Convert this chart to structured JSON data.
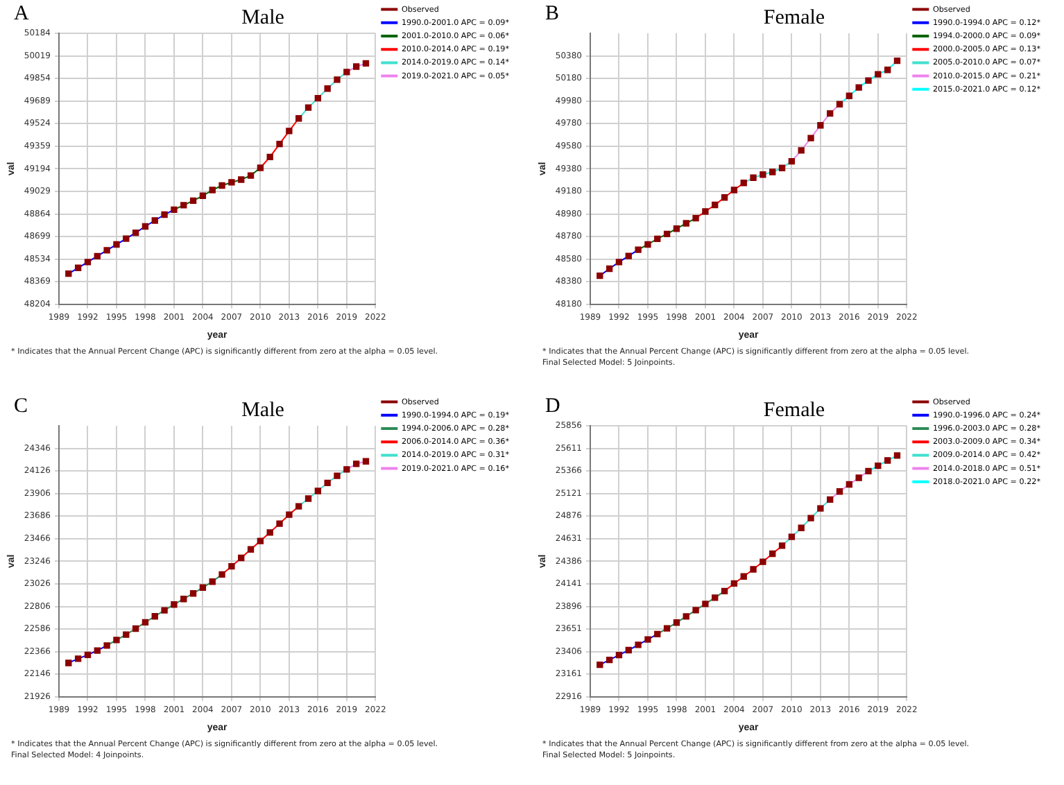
{
  "chart_data": [
    {
      "type": "line",
      "title": "Male",
      "xlabel": "year",
      "ylabel": "val",
      "xlim": [
        1989,
        2022
      ],
      "xticks": [
        1989,
        1992,
        1995,
        1998,
        2001,
        2004,
        2007,
        2010,
        2013,
        2016,
        2019,
        2022
      ],
      "ylim": [
        48204,
        50184
      ],
      "yticks": [
        48204,
        48369,
        48534,
        48699,
        48864,
        49029,
        49194,
        49359,
        49524,
        49689,
        49854,
        50019,
        50184
      ],
      "grid": true,
      "legend": "right",
      "annotations": [
        "A",
        "* Indicates that the Annual Percent Change (APC) is significantly different from zero at the alpha = 0.05 level."
      ],
      "series": [
        {
          "name": "Observed",
          "type": "scatter",
          "marker": "square",
          "color": "#8b0000",
          "x": [
            1990,
            1991,
            1992,
            1993,
            1994,
            1995,
            1996,
            1997,
            1998,
            1999,
            2000,
            2001,
            2002,
            2003,
            2004,
            2005,
            2006,
            2007,
            2008,
            2009,
            2010,
            2011,
            2012,
            2013,
            2014,
            2015,
            2016,
            2017,
            2018,
            2019,
            2020,
            2021
          ],
          "values": [
            48428,
            48470,
            48513,
            48556,
            48599,
            48641,
            48684,
            48727,
            48773,
            48816,
            48859,
            48895,
            48928,
            48961,
            48997,
            49039,
            49072,
            49095,
            49115,
            49145,
            49201,
            49280,
            49375,
            49470,
            49562,
            49641,
            49710,
            49780,
            49845,
            49901,
            49941,
            49964
          ]
        },
        {
          "name": "1990.0-2001.0 APC = 0.09*",
          "type": "line",
          "color": "#0000ff",
          "x": [
            1990,
            1991,
            1992,
            1993,
            1994,
            1995,
            1996,
            1997,
            1998,
            1999,
            2000,
            2001
          ],
          "values": [
            48428,
            48470,
            48513,
            48556,
            48599,
            48641,
            48684,
            48727,
            48773,
            48816,
            48859,
            48895
          ]
        },
        {
          "name": "2001.0-2010.0 APC = 0.06*",
          "type": "line",
          "color": "#006400",
          "x": [
            2001,
            2002,
            2003,
            2004,
            2005,
            2006,
            2007,
            2008,
            2009,
            2010
          ],
          "values": [
            48895,
            48928,
            48961,
            48997,
            49039,
            49072,
            49095,
            49115,
            49145,
            49201
          ]
        },
        {
          "name": "2010.0-2014.0 APC = 0.19*",
          "type": "line",
          "color": "#ff0000",
          "x": [
            2010,
            2011,
            2012,
            2013,
            2014
          ],
          "values": [
            49201,
            49280,
            49375,
            49470,
            49562
          ]
        },
        {
          "name": "2014.0-2019.0 APC = 0.14*",
          "type": "line",
          "color": "#40e0d0",
          "x": [
            2014,
            2015,
            2016,
            2017,
            2018,
            2019
          ],
          "values": [
            49562,
            49641,
            49710,
            49780,
            49845,
            49901
          ]
        },
        {
          "name": "2019.0-2021.0 APC = 0.05*",
          "type": "line",
          "color": "#ee82ee",
          "x": [
            2019,
            2020,
            2021
          ],
          "values": [
            49901,
            49941,
            49964
          ]
        }
      ]
    },
    {
      "type": "line",
      "title": "Female",
      "xlabel": "year",
      "ylabel": "val",
      "xlim": [
        1989,
        2022
      ],
      "xticks": [
        1989,
        1992,
        1995,
        1998,
        2001,
        2004,
        2007,
        2010,
        2013,
        2016,
        2019,
        2022
      ],
      "ylim": [
        48180,
        50580
      ],
      "yticks": [
        48180,
        48380,
        48580,
        48780,
        48980,
        49180,
        49380,
        49580,
        49780,
        49980,
        50180,
        50380
      ],
      "grid": true,
      "legend": "right",
      "annotations": [
        "B",
        "* Indicates that the Annual Percent Change (APC) is significantly different from zero at the alpha = 0.05 level.",
        "Final Selected Model: 5 Joinpoints."
      ],
      "series": [
        {
          "name": "Observed",
          "type": "scatter",
          "marker": "square",
          "color": "#8b0000",
          "x": [
            1990,
            1991,
            1992,
            1993,
            1994,
            1995,
            1996,
            1997,
            1998,
            1999,
            2000,
            2001,
            2002,
            2003,
            2004,
            2005,
            2006,
            2007,
            2008,
            2009,
            2010,
            2011,
            2012,
            2013,
            2014,
            2015,
            2016,
            2017,
            2018,
            2019,
            2020,
            2021
          ],
          "values": [
            48433,
            48495,
            48554,
            48608,
            48663,
            48710,
            48760,
            48803,
            48850,
            48897,
            48943,
            49002,
            49060,
            49126,
            49192,
            49255,
            49301,
            49329,
            49352,
            49387,
            49446,
            49543,
            49652,
            49765,
            49870,
            49952,
            50026,
            50100,
            50162,
            50217,
            50256,
            50337
          ]
        },
        {
          "name": "1990.0-1994.0 APC = 0.12*",
          "type": "line",
          "color": "#0000ff",
          "x": [
            1990,
            1991,
            1992,
            1993,
            1994
          ],
          "values": [
            48433,
            48495,
            48554,
            48608,
            48663
          ]
        },
        {
          "name": "1994.0-2000.0 APC = 0.09*",
          "type": "line",
          "color": "#006400",
          "x": [
            1994,
            1995,
            1996,
            1997,
            1998,
            1999,
            2000
          ],
          "values": [
            48663,
            48710,
            48760,
            48803,
            48850,
            48897,
            48943
          ]
        },
        {
          "name": "2000.0-2005.0 APC = 0.13*",
          "type": "line",
          "color": "#ff0000",
          "x": [
            2000,
            2001,
            2002,
            2003,
            2004,
            2005
          ],
          "values": [
            48943,
            49002,
            49060,
            49126,
            49192,
            49255
          ]
        },
        {
          "name": "2005.0-2010.0 APC = 0.07*",
          "type": "line",
          "color": "#40e0d0",
          "x": [
            2005,
            2006,
            2007,
            2008,
            2009,
            2010
          ],
          "values": [
            49255,
            49301,
            49329,
            49352,
            49387,
            49446
          ]
        },
        {
          "name": "2010.0-2015.0 APC = 0.21*",
          "type": "line",
          "color": "#ee82ee",
          "x": [
            2010,
            2011,
            2012,
            2013,
            2014,
            2015
          ],
          "values": [
            49446,
            49543,
            49652,
            49765,
            49870,
            49952
          ]
        },
        {
          "name": "2015.0-2021.0 APC = 0.12*",
          "type": "line",
          "color": "#00ffff",
          "x": [
            2015,
            2016,
            2017,
            2018,
            2019,
            2020,
            2021
          ],
          "values": [
            49952,
            50026,
            50100,
            50162,
            50217,
            50256,
            50337
          ]
        }
      ]
    },
    {
      "type": "line",
      "title": "Male",
      "xlabel": "year",
      "ylabel": "val",
      "xlim": [
        1989,
        2022
      ],
      "xticks": [
        1989,
        1992,
        1995,
        1998,
        2001,
        2004,
        2007,
        2010,
        2013,
        2016,
        2019,
        2022
      ],
      "ylim": [
        21926,
        24566
      ],
      "yticks": [
        21926,
        22146,
        22366,
        22586,
        22806,
        23026,
        23246,
        23466,
        23686,
        23906,
        24126,
        24346
      ],
      "grid": true,
      "legend": "right",
      "annotations": [
        "C",
        "* Indicates that the Annual Percent Change (APC) is significantly different from zero at the alpha = 0.05 level.",
        "Final Selected Model: 4 Joinpoints."
      ],
      "series": [
        {
          "name": "Observed",
          "type": "scatter",
          "marker": "square",
          "color": "#8b0000",
          "x": [
            1990,
            1991,
            1992,
            1993,
            1994,
            1995,
            1996,
            1997,
            1998,
            1999,
            2000,
            2001,
            2002,
            2003,
            2004,
            2005,
            2006,
            2007,
            2008,
            2009,
            2010,
            2011,
            2012,
            2013,
            2014,
            2015,
            2016,
            2017,
            2018,
            2019,
            2020,
            2021
          ],
          "values": [
            22256,
            22297,
            22334,
            22376,
            22425,
            22479,
            22532,
            22590,
            22652,
            22710,
            22768,
            22825,
            22879,
            22933,
            22990,
            23048,
            23118,
            23197,
            23279,
            23362,
            23444,
            23527,
            23613,
            23700,
            23782,
            23857,
            23931,
            24010,
            24079,
            24141,
            24195,
            24220
          ]
        },
        {
          "name": "1990.0-1994.0 APC = 0.19*",
          "type": "line",
          "color": "#0000ff",
          "x": [
            1990,
            1991,
            1992,
            1993,
            1994
          ],
          "values": [
            22256,
            22297,
            22334,
            22376,
            22425
          ]
        },
        {
          "name": "1994.0-2006.0 APC = 0.28*",
          "type": "line",
          "color": "#2e8b57",
          "x": [
            1994,
            1995,
            1996,
            1997,
            1998,
            1999,
            2000,
            2001,
            2002,
            2003,
            2004,
            2005,
            2006
          ],
          "values": [
            22425,
            22479,
            22532,
            22590,
            22652,
            22710,
            22768,
            22825,
            22879,
            22933,
            22990,
            23048,
            23118
          ]
        },
        {
          "name": "2006.0-2014.0 APC = 0.36*",
          "type": "line",
          "color": "#ff0000",
          "x": [
            2006,
            2007,
            2008,
            2009,
            2010,
            2011,
            2012,
            2013,
            2014
          ],
          "values": [
            23118,
            23197,
            23279,
            23362,
            23444,
            23527,
            23613,
            23700,
            23782
          ]
        },
        {
          "name": "2014.0-2019.0 APC = 0.31*",
          "type": "line",
          "color": "#40e0d0",
          "x": [
            2014,
            2015,
            2016,
            2017,
            2018,
            2019
          ],
          "values": [
            23782,
            23857,
            23931,
            24010,
            24079,
            24141
          ]
        },
        {
          "name": "2019.0-2021.0 APC = 0.16*",
          "type": "line",
          "color": "#ee82ee",
          "x": [
            2019,
            2020,
            2021
          ],
          "values": [
            24141,
            24195,
            24220
          ]
        }
      ]
    },
    {
      "type": "line",
      "title": "Female",
      "xlabel": "year",
      "ylabel": "val",
      "xlim": [
        1989,
        2022
      ],
      "xticks": [
        1989,
        1992,
        1995,
        1998,
        2001,
        2004,
        2007,
        2010,
        2013,
        2016,
        2019,
        2022
      ],
      "ylim": [
        22916,
        25856
      ],
      "yticks": [
        22916,
        23161,
        23406,
        23651,
        23896,
        24141,
        24386,
        24631,
        24876,
        25121,
        25366,
        25611,
        25856
      ],
      "grid": true,
      "legend": "right",
      "annotations": [
        "D",
        "* Indicates that the Annual Percent Change (APC) is significantly different from zero at the alpha = 0.05 level.",
        "Final Selected Model: 5 Joinpoints."
      ],
      "series": [
        {
          "name": "Observed",
          "type": "scatter",
          "marker": "square",
          "color": "#8b0000",
          "x": [
            1990,
            1991,
            1992,
            1993,
            1994,
            1995,
            1996,
            1997,
            1998,
            1999,
            2000,
            2001,
            2002,
            2003,
            2004,
            2005,
            2006,
            2007,
            2008,
            2009,
            2010,
            2011,
            2012,
            2013,
            2014,
            2015,
            2016,
            2017,
            2018,
            2019,
            2020,
            2021
          ],
          "values": [
            23263,
            23316,
            23369,
            23422,
            23480,
            23538,
            23596,
            23658,
            23721,
            23788,
            23856,
            23923,
            23991,
            24063,
            24145,
            24222,
            24299,
            24381,
            24468,
            24555,
            24651,
            24748,
            24854,
            24960,
            25056,
            25143,
            25220,
            25292,
            25364,
            25422,
            25480,
            25533
          ]
        },
        {
          "name": "1990.0-1996.0 APC = 0.24*",
          "type": "line",
          "color": "#0000ff",
          "x": [
            1990,
            1991,
            1992,
            1993,
            1994,
            1995,
            1996
          ],
          "values": [
            23263,
            23316,
            23369,
            23422,
            23480,
            23538,
            23596
          ]
        },
        {
          "name": "1996.0-2003.0 APC = 0.28*",
          "type": "line",
          "color": "#2e8b57",
          "x": [
            1996,
            1997,
            1998,
            1999,
            2000,
            2001,
            2002,
            2003
          ],
          "values": [
            23596,
            23658,
            23721,
            23788,
            23856,
            23923,
            23991,
            24063
          ]
        },
        {
          "name": "2003.0-2009.0 APC = 0.34*",
          "type": "line",
          "color": "#ff0000",
          "x": [
            2003,
            2004,
            2005,
            2006,
            2007,
            2008,
            2009
          ],
          "values": [
            24063,
            24145,
            24222,
            24299,
            24381,
            24468,
            24555
          ]
        },
        {
          "name": "2009.0-2014.0 APC = 0.42*",
          "type": "line",
          "color": "#40e0d0",
          "x": [
            2009,
            2010,
            2011,
            2012,
            2013,
            2014
          ],
          "values": [
            24555,
            24651,
            24748,
            24854,
            24960,
            25056
          ]
        },
        {
          "name": "2014.0-2018.0 APC = 0.51*",
          "type": "line",
          "color": "#ee82ee",
          "x": [
            2014,
            2015,
            2016,
            2017,
            2018
          ],
          "values": [
            25056,
            25143,
            25220,
            25292,
            25364
          ]
        },
        {
          "name": "2018.0-2021.0 APC = 0.22*",
          "type": "line",
          "color": "#00ffff",
          "x": [
            2018,
            2019,
            2020,
            2021
          ],
          "values": [
            25364,
            25422,
            25480,
            25533
          ]
        }
      ]
    }
  ]
}
